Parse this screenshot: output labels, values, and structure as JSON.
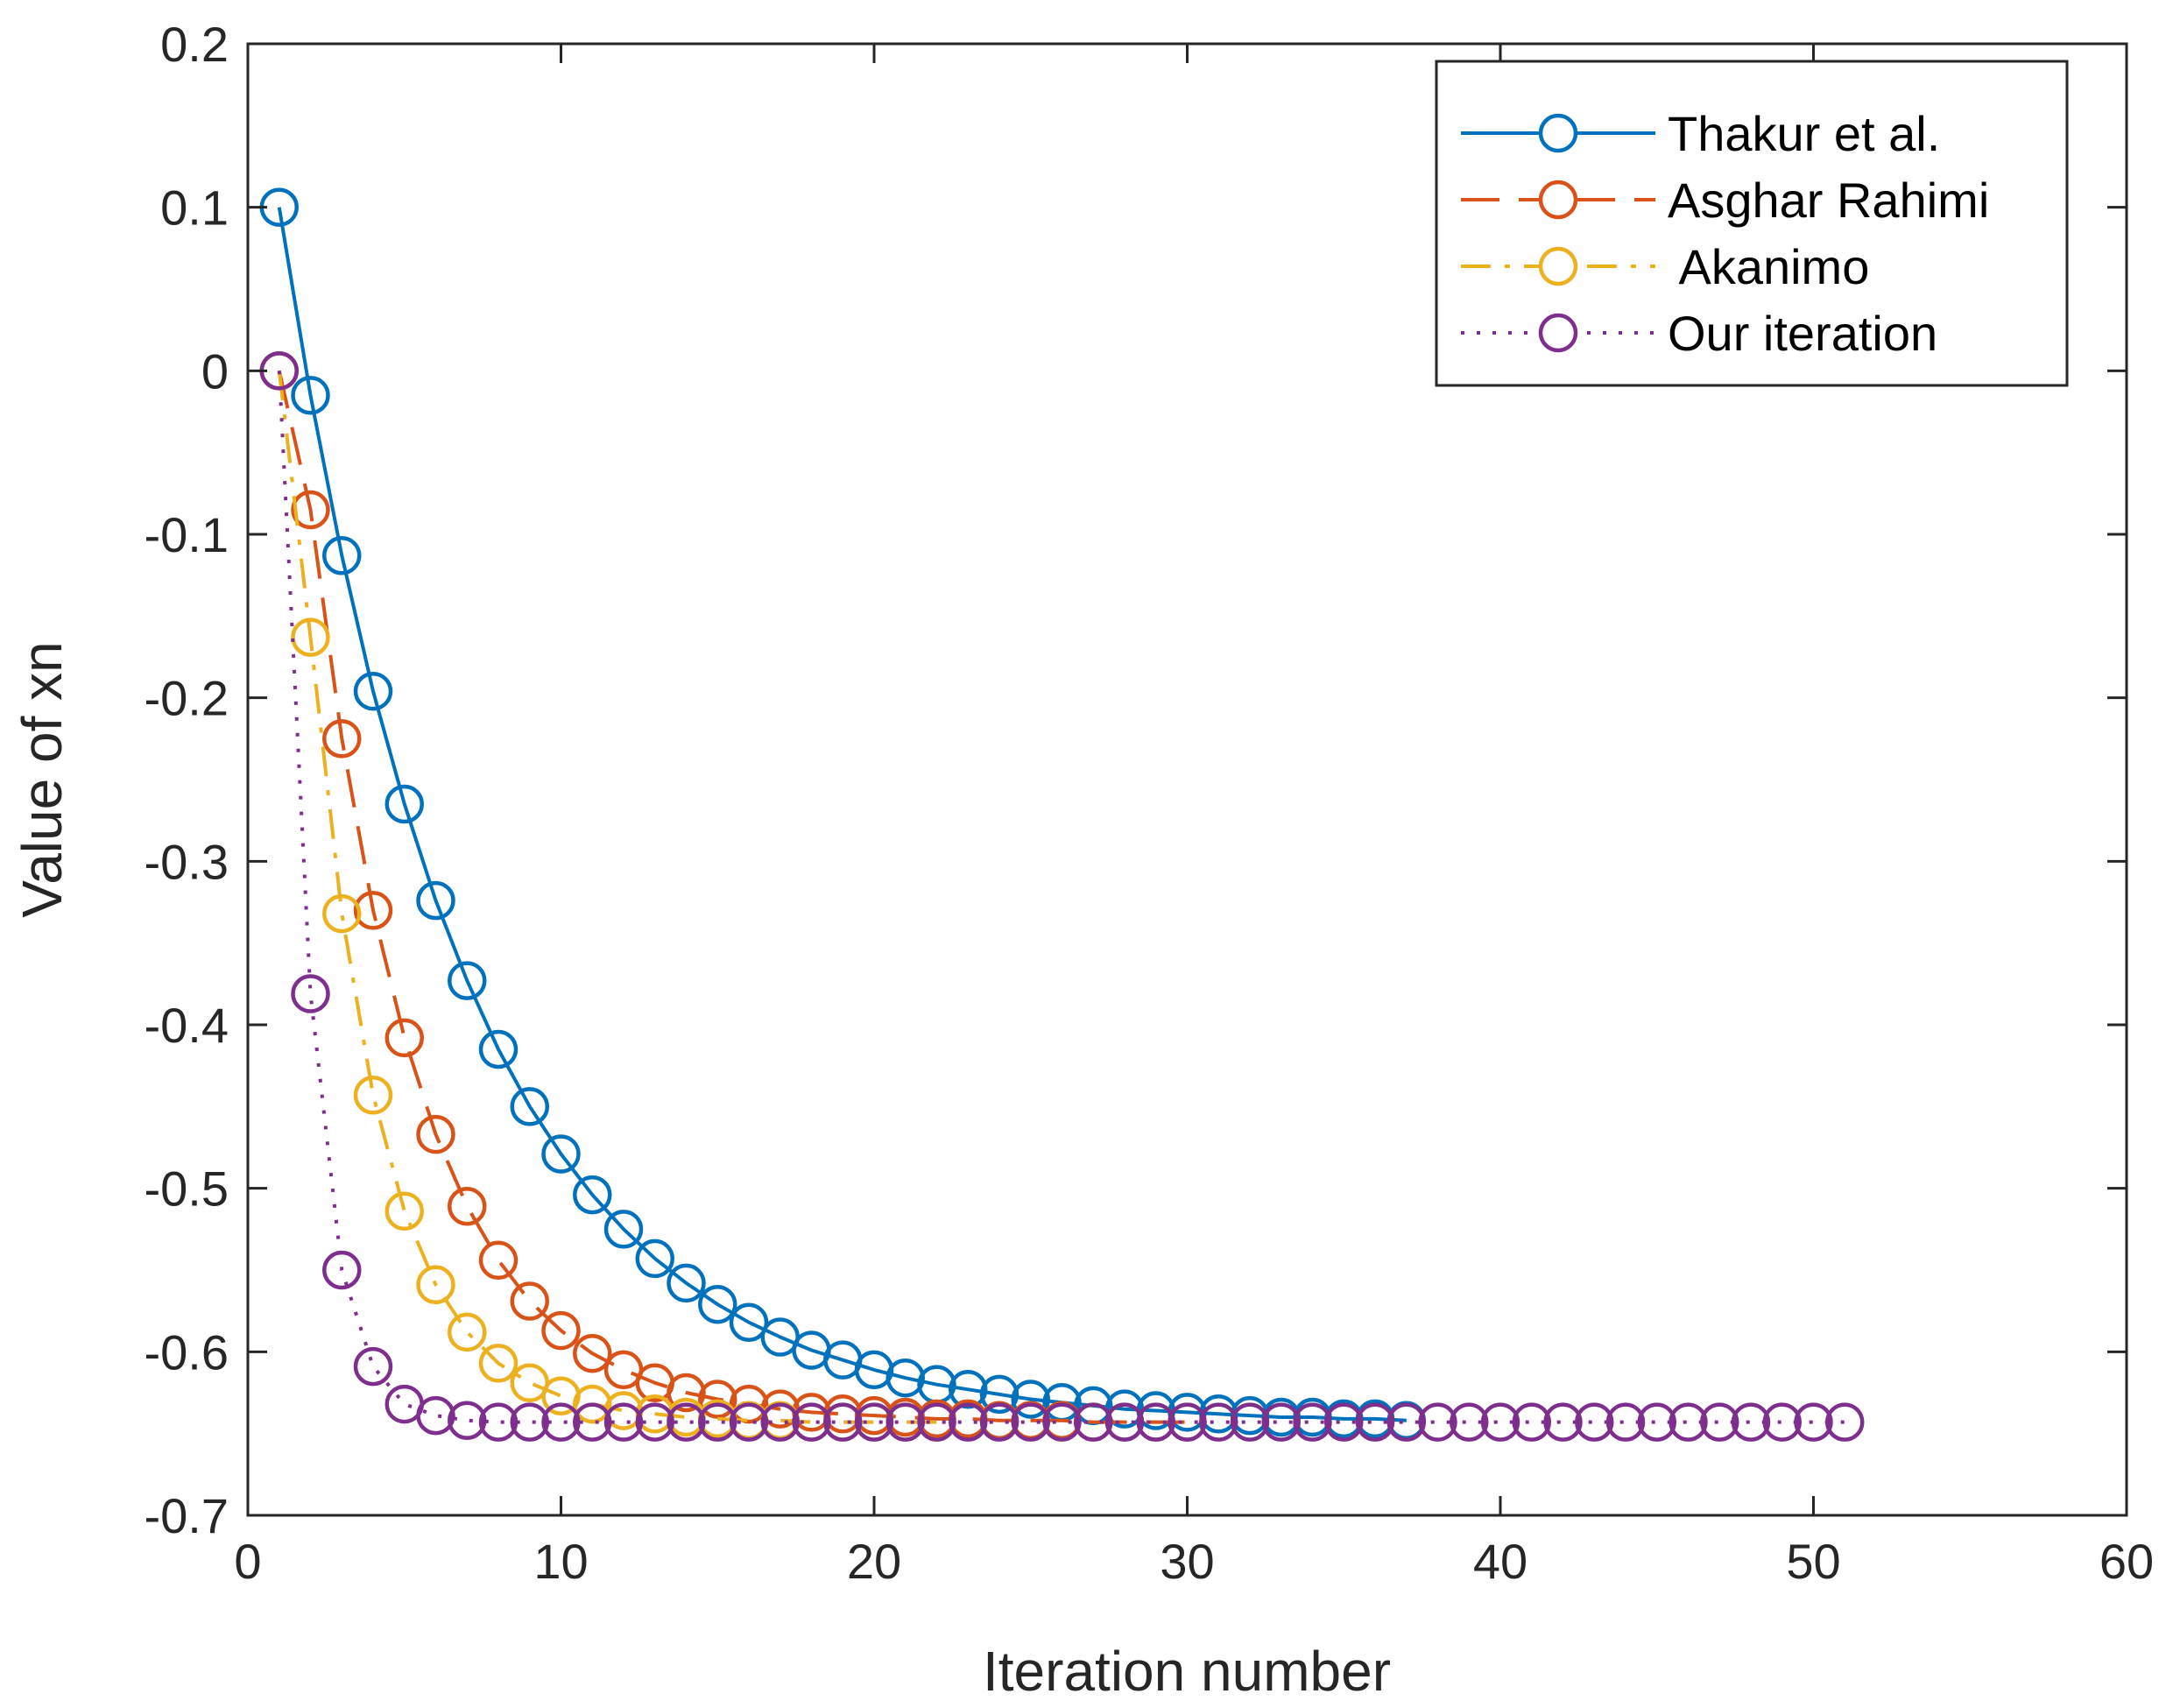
{
  "chart_data": {
    "type": "line",
    "title": "",
    "xlabel": "Iteration number",
    "ylabel": "Value of xn",
    "xlim": [
      0,
      60
    ],
    "ylim": [
      -0.7,
      0.2
    ],
    "xticks": [
      0,
      10,
      20,
      30,
      40,
      50,
      60
    ],
    "yticks": [
      0.2,
      0.1,
      0,
      -0.1,
      -0.2,
      -0.3,
      -0.4,
      -0.5,
      -0.6,
      -0.7
    ],
    "xtick_labels": [
      "0",
      "10",
      "20",
      "30",
      "40",
      "50",
      "60"
    ],
    "ytick_labels": [
      "0.2",
      "0.1",
      "0",
      "-0.1",
      "-0.2",
      "-0.3",
      "-0.4",
      "-0.5",
      "-0.6",
      "-0.7"
    ],
    "grid": false,
    "legend_position": "top-right",
    "series": [
      {
        "name": "Thakur et al.",
        "legend_label": "Thakur et al.",
        "color": "#0072BD",
        "line_style": "solid",
        "marker": "circle",
        "x": [
          1,
          2,
          3,
          4,
          5,
          6,
          7,
          8,
          9,
          10,
          11,
          12,
          13,
          14,
          15,
          16,
          17,
          18,
          19,
          20,
          21,
          22,
          23,
          24,
          25,
          26,
          27,
          28,
          29,
          30,
          31,
          32,
          33,
          34,
          35,
          36,
          37
        ],
        "values": [
          0.1,
          -0.015,
          -0.113,
          -0.196,
          -0.265,
          -0.324,
          -0.373,
          -0.415,
          -0.45,
          -0.479,
          -0.504,
          -0.525,
          -0.543,
          -0.558,
          -0.571,
          -0.582,
          -0.591,
          -0.599,
          -0.605,
          -0.611,
          -0.616,
          -0.62,
          -0.623,
          -0.626,
          -0.629,
          -0.631,
          -0.633,
          -0.635,
          -0.636,
          -0.637,
          -0.638,
          -0.639,
          -0.64,
          -0.64,
          -0.641,
          -0.641,
          -0.642
        ]
      },
      {
        "name": "Asghar Rahimi",
        "legend_label": "Asghar Rahimi",
        "color": "#D95319",
        "line_style": "dashed",
        "marker": "circle",
        "x": [
          1,
          2,
          3,
          4,
          5,
          6,
          7,
          8,
          9,
          10,
          11,
          12,
          13,
          14,
          15,
          16,
          17,
          18,
          19,
          20,
          21,
          22,
          23,
          24,
          25,
          26,
          27,
          28,
          29,
          30
        ],
        "values": [
          0,
          -0.085,
          -0.225,
          -0.33,
          -0.408,
          -0.467,
          -0.511,
          -0.544,
          -0.569,
          -0.587,
          -0.601,
          -0.611,
          -0.619,
          -0.625,
          -0.629,
          -0.632,
          -0.635,
          -0.637,
          -0.638,
          -0.639,
          -0.64,
          -0.641,
          -0.641,
          -0.642,
          -0.642,
          -0.642,
          -0.643,
          -0.643,
          -0.643,
          -0.643
        ]
      },
      {
        "name": "Akanimo",
        "legend_label": " Akanimo",
        "color": "#EDB120",
        "line_style": "dashdot",
        "marker": "circle",
        "x": [
          1,
          2,
          3,
          4,
          5,
          6,
          7,
          8,
          9,
          10,
          11,
          12,
          13,
          14,
          15,
          16,
          17,
          18,
          19,
          20,
          21,
          22
        ],
        "values": [
          0,
          -0.163,
          -0.332,
          -0.443,
          -0.514,
          -0.559,
          -0.588,
          -0.607,
          -0.619,
          -0.627,
          -0.632,
          -0.636,
          -0.638,
          -0.64,
          -0.641,
          -0.642,
          -0.642,
          -0.643,
          -0.643,
          -0.643,
          -0.643,
          -0.643
        ]
      },
      {
        "name": "Our iteration",
        "legend_label": "Our iteration",
        "color": "#7E2F8E",
        "line_style": "dotted",
        "marker": "circle",
        "x": [
          1,
          2,
          3,
          4,
          5,
          6,
          7,
          8,
          9,
          10,
          11,
          12,
          13,
          14,
          15,
          16,
          17,
          18,
          19,
          20,
          21,
          22,
          23,
          24,
          25,
          26,
          27,
          28,
          29,
          30,
          31,
          32,
          33,
          34,
          35,
          36,
          37,
          38,
          39,
          40,
          41,
          42,
          43,
          44,
          45,
          46,
          47,
          48,
          49,
          50,
          51
        ],
        "values": [
          0,
          -0.381,
          -0.55,
          -0.609,
          -0.632,
          -0.639,
          -0.642,
          -0.643,
          -0.643,
          -0.643,
          -0.643,
          -0.643,
          -0.643,
          -0.643,
          -0.643,
          -0.643,
          -0.643,
          -0.643,
          -0.643,
          -0.643,
          -0.643,
          -0.643,
          -0.643,
          -0.643,
          -0.643,
          -0.643,
          -0.643,
          -0.643,
          -0.643,
          -0.643,
          -0.643,
          -0.643,
          -0.643,
          -0.643,
          -0.643,
          -0.643,
          -0.643,
          -0.643,
          -0.643,
          -0.643,
          -0.643,
          -0.643,
          -0.643,
          -0.643,
          -0.643,
          -0.643,
          -0.643,
          -0.643,
          -0.643,
          -0.643,
          -0.643
        ]
      }
    ]
  }
}
